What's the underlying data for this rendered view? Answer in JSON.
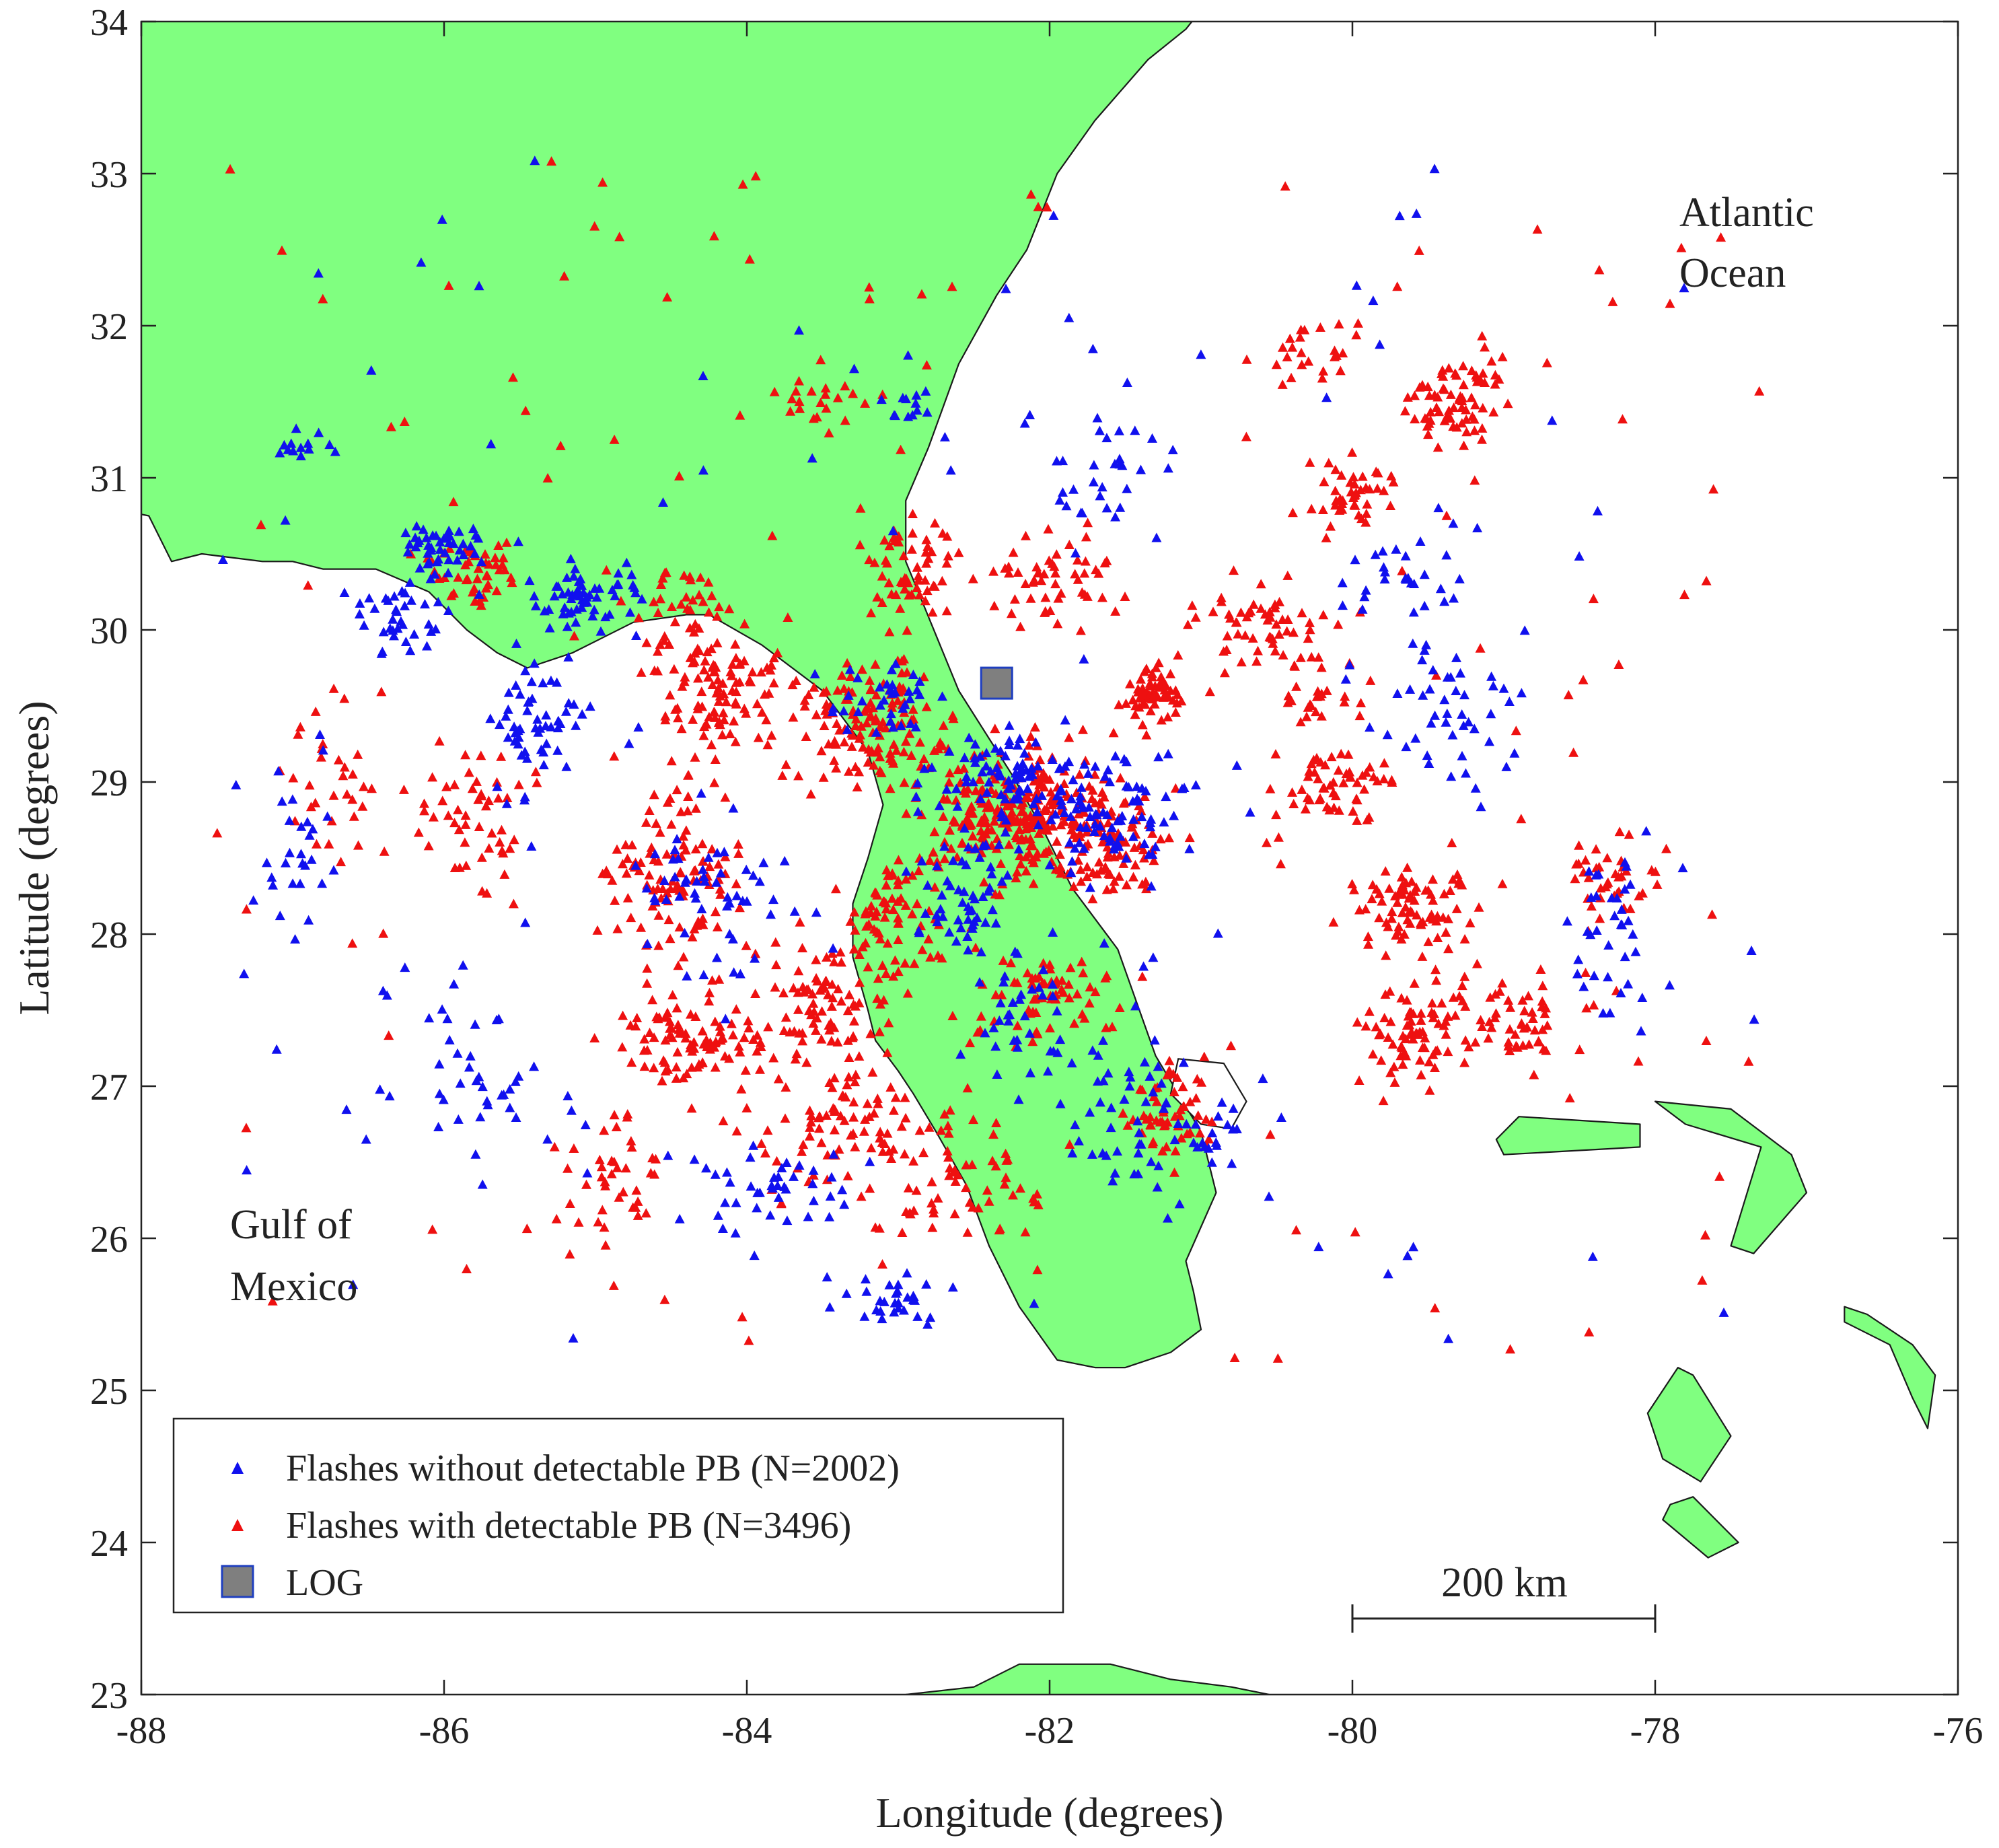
{
  "chart_data": {
    "type": "scatter",
    "xlabel": "Longitude (degrees)",
    "ylabel": "Latitude (degrees)",
    "xlim": [
      -88,
      -76
    ],
    "ylim": [
      23,
      34
    ],
    "x_ticks": [
      "-88",
      "-86",
      "-84",
      "-82",
      "-80",
      "-78",
      "-76"
    ],
    "y_ticks": [
      "23",
      "24",
      "25",
      "26",
      "27",
      "28",
      "29",
      "30",
      "31",
      "32",
      "33",
      "34"
    ],
    "grid": false,
    "legend_position": "bottom-left",
    "annotations": {
      "atlantic": [
        "Atlantic",
        "Ocean"
      ],
      "gulf": [
        "Gulf of",
        "Mexico"
      ],
      "scale_bar": {
        "label": "200 km",
        "from_lon": -80,
        "to_lon": -78,
        "lat": 23.5
      }
    },
    "series": [
      {
        "name": "Flashes without detectable PB (N=2002)",
        "marker": "triangle",
        "color": "#1010ee",
        "count": 2002,
        "clusters": [
          [
            -86.0,
            30.55,
            0.25,
            0.15,
            45
          ],
          [
            -85.1,
            30.2,
            0.35,
            0.2,
            60
          ],
          [
            -85.4,
            29.4,
            0.25,
            0.35,
            55
          ],
          [
            -86.3,
            30.1,
            0.3,
            0.2,
            35
          ],
          [
            -82.3,
            29.0,
            0.5,
            0.35,
            90
          ],
          [
            -81.6,
            28.8,
            0.5,
            0.4,
            80
          ],
          [
            -82.6,
            28.2,
            0.3,
            0.4,
            50
          ],
          [
            -84.2,
            28.3,
            0.45,
            0.45,
            50
          ],
          [
            -83.0,
            25.6,
            0.3,
            0.2,
            30
          ],
          [
            -81.5,
            26.8,
            0.4,
            0.5,
            50
          ],
          [
            -79.3,
            29.5,
            0.5,
            0.5,
            45
          ],
          [
            -78.3,
            28.0,
            0.25,
            0.5,
            35
          ],
          [
            -79.7,
            30.3,
            0.4,
            0.3,
            30
          ],
          [
            -83.0,
            31.5,
            0.15,
            0.1,
            12
          ],
          [
            -81.6,
            31.0,
            0.3,
            0.6,
            30
          ],
          [
            -86.9,
            31.2,
            0.2,
            0.1,
            12
          ],
          [
            -87.0,
            28.5,
            0.3,
            0.5,
            25
          ],
          [
            -85.8,
            27.0,
            0.5,
            0.6,
            40
          ],
          [
            -83.8,
            26.3,
            0.6,
            0.4,
            40
          ],
          [
            -80.9,
            26.7,
            0.2,
            0.2,
            18
          ],
          [
            -82.2,
            27.4,
            0.3,
            0.4,
            35
          ],
          [
            -83.1,
            29.6,
            0.3,
            0.25,
            35
          ]
        ],
        "scatter": 110
      },
      {
        "name": "Flashes with detectable PB (N=3496)",
        "marker": "triangle",
        "color": "#ee1010",
        "count": 3496,
        "clusters": [
          [
            -82.2,
            28.8,
            0.55,
            0.4,
            260
          ],
          [
            -83.2,
            29.4,
            0.5,
            0.35,
            140
          ],
          [
            -84.2,
            29.6,
            0.4,
            0.35,
            110
          ],
          [
            -84.5,
            28.4,
            0.4,
            0.5,
            110
          ],
          [
            -84.4,
            27.3,
            0.35,
            0.3,
            90
          ],
          [
            -83.5,
            27.5,
            0.5,
            0.4,
            100
          ],
          [
            -81.6,
            28.6,
            0.35,
            0.3,
            90
          ],
          [
            -81.3,
            29.6,
            0.2,
            0.15,
            60
          ],
          [
            -82.9,
            30.4,
            0.3,
            0.3,
            60
          ],
          [
            -85.8,
            30.4,
            0.25,
            0.2,
            45
          ],
          [
            -85.8,
            28.8,
            0.4,
            0.4,
            50
          ],
          [
            -80.6,
            30.0,
            0.4,
            0.3,
            55
          ],
          [
            -79.3,
            31.5,
            0.3,
            0.3,
            70
          ],
          [
            -80.1,
            29.0,
            0.3,
            0.25,
            55
          ],
          [
            -79.6,
            28.2,
            0.4,
            0.3,
            80
          ],
          [
            -79.6,
            27.3,
            0.3,
            0.3,
            70
          ],
          [
            -78.9,
            27.4,
            0.4,
            0.3,
            60
          ],
          [
            -80.0,
            30.9,
            0.25,
            0.25,
            45
          ],
          [
            -80.3,
            31.8,
            0.3,
            0.2,
            25
          ],
          [
            -78.3,
            28.3,
            0.25,
            0.3,
            40
          ],
          [
            -81.2,
            26.8,
            0.35,
            0.25,
            55
          ],
          [
            -84.9,
            26.4,
            0.3,
            0.5,
            40
          ],
          [
            -83.4,
            26.7,
            0.5,
            0.4,
            80
          ],
          [
            -82.6,
            26.3,
            0.5,
            0.4,
            55
          ],
          [
            -82.0,
            30.3,
            0.4,
            0.3,
            50
          ],
          [
            -86.7,
            29.0,
            0.3,
            0.6,
            30
          ],
          [
            -83.5,
            31.5,
            0.3,
            0.2,
            20
          ],
          [
            -80.2,
            29.6,
            0.2,
            0.2,
            25
          ],
          [
            -82.0,
            27.6,
            0.5,
            0.3,
            70
          ],
          [
            -83.0,
            28.1,
            0.3,
            0.4,
            60
          ],
          [
            -84.4,
            30.2,
            0.3,
            0.2,
            30
          ]
        ],
        "scatter": 150
      },
      {
        "name": "LOG",
        "marker": "square",
        "color": "#7f7f7f",
        "edge_color": "#1f3fbf",
        "x": [
          -82.35
        ],
        "y": [
          29.65
        ]
      }
    ]
  }
}
